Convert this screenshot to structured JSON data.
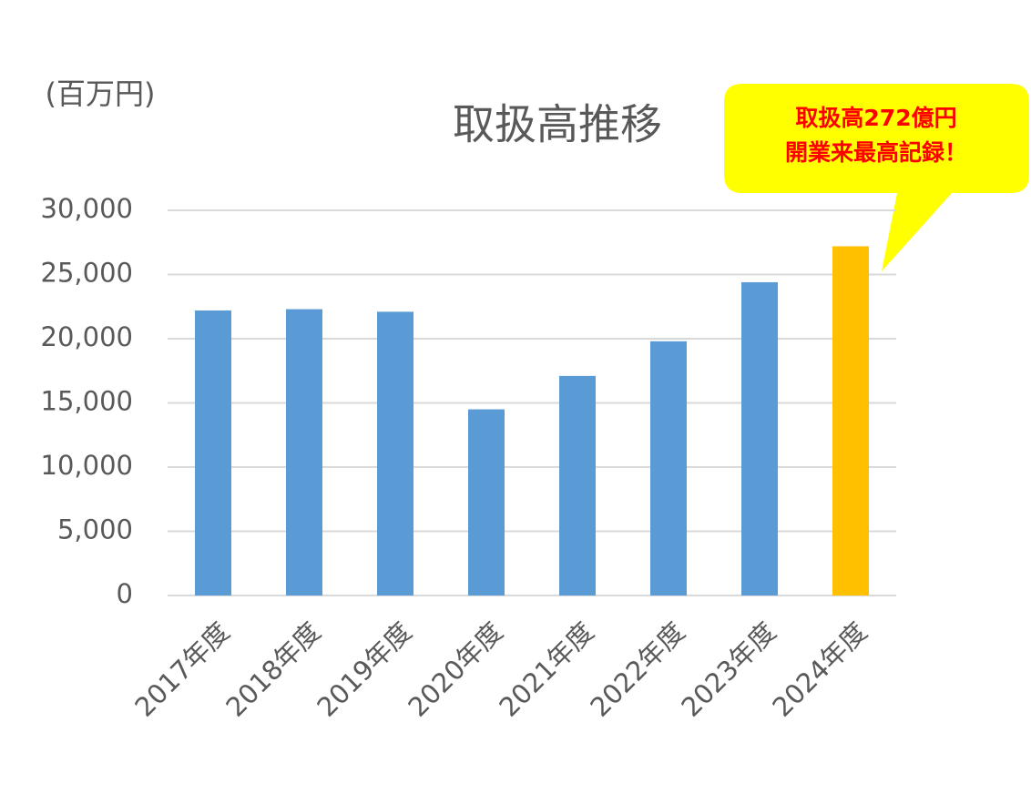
{
  "chart_data": {
    "type": "bar",
    "title": "取扱高推移",
    "y_axis_label": "(百万円)",
    "categories": [
      "2017年度",
      "2018年度",
      "2019年度",
      "2020年度",
      "2021年度",
      "2022年度",
      "2023年度",
      "2024年度"
    ],
    "values": [
      22200,
      22300,
      22100,
      14500,
      17100,
      19800,
      24400,
      27200
    ],
    "colors": [
      "#5b9bd5",
      "#5b9bd5",
      "#5b9bd5",
      "#5b9bd5",
      "#5b9bd5",
      "#5b9bd5",
      "#5b9bd5",
      "#ffc000"
    ],
    "ylim": [
      0,
      30000
    ],
    "yticks": [
      0,
      {
        "value": 5000,
        "label": "5,000"
      },
      {
        "value": 10000,
        "label": "10,000"
      },
      {
        "value": 15000,
        "label": "15,000"
      },
      {
        "value": 20000,
        "label": "20,000"
      },
      {
        "value": 25000,
        "label": "25,000"
      },
      {
        "value": 30000,
        "label": "30,000"
      }
    ],
    "grid": true,
    "annotation": [
      "取扱高272億円",
      "開業来最高記録！"
    ]
  }
}
